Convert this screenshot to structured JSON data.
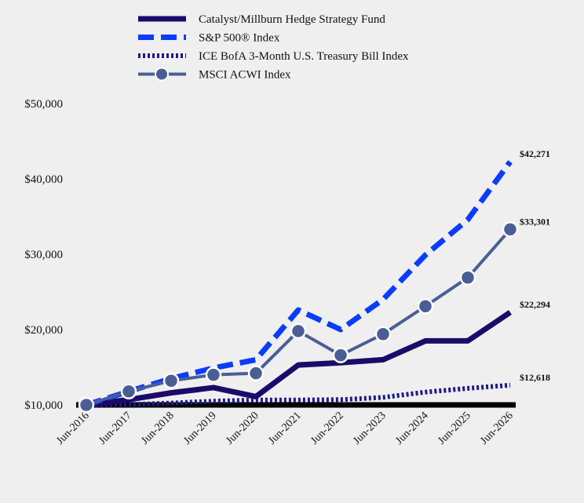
{
  "chart_data": {
    "type": "line",
    "categories": [
      "Jun-2016",
      "Jun-2017",
      "Jun-2018",
      "Jun-2019",
      "Jun-2020",
      "Jun-2021",
      "Jun-2022",
      "Jun-2023",
      "Jun-2024",
      "Jun-2025",
      "Jun-2026"
    ],
    "ylim": [
      10000,
      50000
    ],
    "y_ticks": [
      "$10,000",
      "$20,000",
      "$30,000",
      "$40,000",
      "$50,000"
    ],
    "y_tick_values": [
      10000,
      20000,
      30000,
      40000,
      50000
    ],
    "legend_position": "top",
    "grid": false,
    "series": [
      {
        "name": "Catalyst/Millburn Hedge Strategy Fund",
        "color": "#1c0a6b",
        "style": "solid",
        "values": [
          10000,
          10700,
          11600,
          12300,
          11100,
          15300,
          15600,
          16000,
          18500,
          18500,
          22294
        ],
        "end_label": "$22,294"
      },
      {
        "name": "S&P 500® Index",
        "color": "#0a3cff",
        "style": "dashed",
        "values": [
          10000,
          11800,
          13500,
          14900,
          16000,
          22600,
          20000,
          24000,
          29900,
          34600,
          42271
        ],
        "end_label": "$42,271"
      },
      {
        "name": "ICE BofA 3-Month U.S. Treasury Bill Index",
        "color": "#1c1a8a",
        "style": "dotted",
        "values": [
          10000,
          10050,
          10250,
          10500,
          10650,
          10650,
          10700,
          11000,
          11700,
          12200,
          12618
        ],
        "end_label": "$12,618"
      },
      {
        "name": "MSCI ACWI Index",
        "color": "#4a5e96",
        "style": "marker",
        "values": [
          10000,
          11800,
          13200,
          14000,
          14200,
          19800,
          16600,
          19400,
          23100,
          26900,
          33301
        ],
        "end_label": "$33,301"
      }
    ]
  }
}
